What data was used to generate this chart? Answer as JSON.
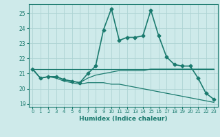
{
  "title": "",
  "xlabel": "Humidex (Indice chaleur)",
  "ylabel": "",
  "bg_color": "#ceeaea",
  "line_color": "#1a7a6e",
  "grid_color": "#aed4d4",
  "xlim": [
    -0.5,
    23.5
  ],
  "ylim": [
    18.8,
    25.6
  ],
  "yticks": [
    19,
    20,
    21,
    22,
    23,
    24,
    25
  ],
  "xticks": [
    0,
    1,
    2,
    3,
    4,
    5,
    6,
    7,
    8,
    9,
    10,
    11,
    12,
    13,
    14,
    15,
    16,
    17,
    18,
    19,
    20,
    21,
    22,
    23
  ],
  "lines": [
    {
      "x": [
        0,
        1,
        2,
        3,
        4,
        5,
        6,
        7,
        8,
        9,
        10,
        11,
        12,
        13,
        14,
        15,
        16,
        17,
        18,
        19,
        20,
        21,
        22,
        23
      ],
      "y": [
        21.3,
        20.7,
        20.8,
        20.8,
        20.6,
        20.5,
        20.4,
        21.0,
        21.5,
        23.9,
        25.3,
        23.2,
        23.4,
        23.4,
        23.5,
        25.2,
        23.5,
        22.1,
        21.6,
        21.5,
        21.5,
        20.7,
        19.7,
        19.3
      ],
      "marker": "D",
      "markersize": 2.5,
      "linewidth": 1.2
    },
    {
      "x": [
        0,
        1,
        2,
        3,
        4,
        5,
        6,
        7,
        8,
        9,
        10,
        11,
        12,
        13,
        14,
        15,
        16,
        17,
        18,
        19,
        20,
        21,
        22,
        23
      ],
      "y": [
        21.3,
        20.7,
        20.8,
        20.8,
        20.6,
        20.5,
        20.4,
        20.7,
        20.9,
        21.0,
        21.1,
        21.2,
        21.2,
        21.2,
        21.2,
        21.3,
        21.3,
        21.3,
        21.3,
        21.3,
        21.3,
        21.3,
        21.3,
        21.3
      ],
      "marker": null,
      "markersize": 0,
      "linewidth": 0.9
    },
    {
      "x": [
        0,
        1,
        2,
        3,
        4,
        5,
        6,
        7,
        8,
        9,
        10,
        11,
        12,
        13,
        14,
        15,
        16,
        17,
        18,
        19,
        20,
        21,
        22,
        23
      ],
      "y": [
        21.3,
        20.7,
        20.8,
        20.7,
        20.5,
        20.4,
        20.3,
        20.4,
        20.4,
        20.4,
        20.3,
        20.3,
        20.2,
        20.1,
        20.0,
        19.9,
        19.8,
        19.7,
        19.6,
        19.5,
        19.4,
        19.3,
        19.2,
        19.1
      ],
      "marker": null,
      "markersize": 0,
      "linewidth": 0.9
    },
    {
      "x": [
        0,
        23
      ],
      "y": [
        21.3,
        21.3
      ],
      "marker": null,
      "markersize": 0,
      "linewidth": 0.9
    }
  ]
}
